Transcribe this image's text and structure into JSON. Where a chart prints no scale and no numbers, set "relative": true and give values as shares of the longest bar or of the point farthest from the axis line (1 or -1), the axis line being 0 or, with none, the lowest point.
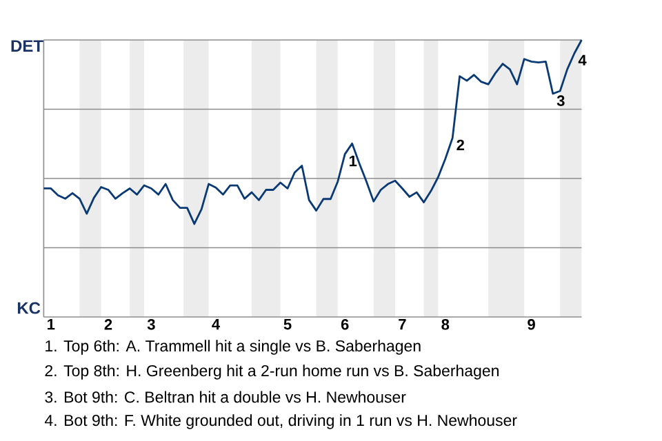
{
  "chart_data": {
    "type": "line",
    "color": "#0a3a75",
    "relative": true,
    "categories": [
      null,
      "1",
      null,
      null,
      null,
      null,
      null,
      null,
      null,
      "2",
      null,
      null,
      null,
      null,
      null,
      "3",
      null,
      null,
      null,
      null,
      null,
      null,
      null,
      null,
      "4",
      null,
      null,
      null,
      null,
      null,
      null,
      null,
      null,
      null,
      "5",
      null,
      null,
      null,
      null,
      null,
      null,
      null,
      "6",
      null,
      null,
      null,
      null,
      null,
      null,
      null,
      "7",
      null,
      null,
      null,
      null,
      null,
      "8",
      null,
      null,
      null,
      null,
      null,
      null,
      null,
      null,
      null,
      null,
      null,
      "9",
      null,
      null,
      null,
      null,
      null,
      null,
      null
    ],
    "values": [
      0.464,
      0.464,
      0.439,
      0.427,
      0.447,
      0.427,
      0.373,
      0.43,
      0.469,
      0.459,
      0.427,
      0.447,
      0.464,
      0.442,
      0.475,
      0.464,
      0.442,
      0.48,
      0.422,
      0.394,
      0.394,
      0.336,
      0.389,
      0.48,
      0.467,
      0.442,
      0.475,
      0.475,
      0.427,
      0.45,
      0.422,
      0.459,
      0.459,
      0.485,
      0.464,
      0.522,
      0.546,
      0.422,
      0.384,
      0.426,
      0.426,
      0.489,
      0.588,
      0.626,
      0.555,
      0.489,
      0.417,
      0.459,
      0.48,
      0.492,
      0.464,
      0.434,
      0.45,
      0.414,
      0.455,
      0.505,
      0.571,
      0.646,
      0.869,
      0.853,
      0.874,
      0.849,
      0.84,
      0.881,
      0.914,
      0.894,
      0.84,
      0.931,
      0.922,
      0.919,
      0.922,
      0.806,
      0.816,
      0.894,
      0.952,
      1.0
    ],
    "grid": "y",
    "annotations": [
      "DET",
      "KC",
      {
        "text": "1",
        "y": 0.588
      },
      {
        "text": "2",
        "y": 0.646
      },
      {
        "text": "3",
        "y": 0.806
      },
      {
        "text": "4",
        "y": 0.952
      },
      "1. Top 6th: A. Trammell hit a single vs B. Saberhagen",
      "2. Top 8th: H. Greenberg hit a 2-run home run vs B. Saberhagen",
      "3. Bot 9th: C. Beltran hit a double vs H. Newhouser",
      "4. Bot 9th: F. White grounded out, driving in 1 run vs H. Newhouser"
    ]
  }
}
